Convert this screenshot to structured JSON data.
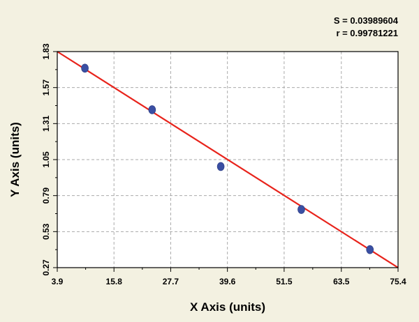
{
  "stats": {
    "s_text": "S = 0.03989604",
    "r_text": "r = 0.99781221"
  },
  "chart_data": {
    "type": "scatter",
    "xlabel": "X Axis (units)",
    "ylabel": "Y Axis (units)",
    "xlim": [
      3.9,
      75.4
    ],
    "ylim": [
      0.27,
      1.83
    ],
    "xticks": [
      3.9,
      15.8,
      27.7,
      39.6,
      51.5,
      63.5,
      75.4
    ],
    "xtick_labels": [
      "3.9",
      "15.8",
      "27.7",
      "39.6",
      "51.5",
      "63.5",
      "75.4"
    ],
    "yticks": [
      0.27,
      0.53,
      0.79,
      1.05,
      1.31,
      1.57,
      1.83
    ],
    "ytick_labels": [
      "0.27",
      "0.53",
      "0.79",
      "1.05",
      "1.31",
      "1.57",
      "1.83"
    ],
    "grid": true,
    "series": [
      {
        "points": [
          {
            "x": 9.7,
            "y": 1.71
          },
          {
            "x": 23.8,
            "y": 1.41
          },
          {
            "x": 38.2,
            "y": 1.0
          },
          {
            "x": 55.1,
            "y": 0.69
          },
          {
            "x": 69.5,
            "y": 0.4
          }
        ],
        "color": "#3a4fa3"
      }
    ],
    "fit_line": {
      "x": [
        3.9,
        75.4
      ],
      "y": [
        1.83,
        0.27
      ],
      "color": "#e8231b"
    },
    "colors": {
      "background": "#f3f1e1",
      "plot_background": "#ffffff",
      "grid": "#aaaaaa",
      "line": "#e8231b",
      "marker": "#3a4fa3"
    }
  }
}
